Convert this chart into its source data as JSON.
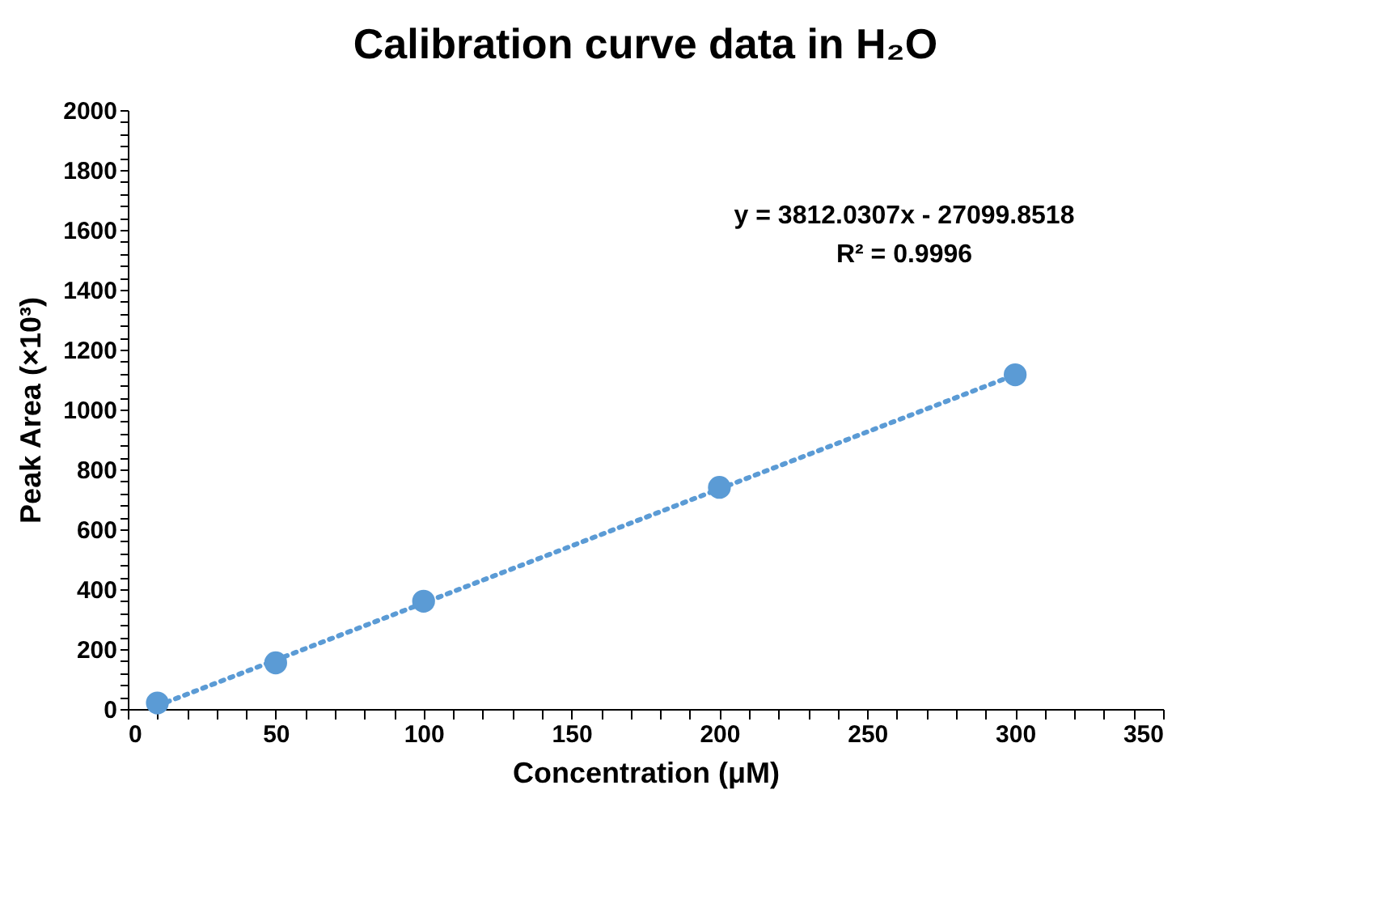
{
  "chart_data": {
    "type": "scatter",
    "title": "Calibration curve data in H₂O",
    "xlabel": "Concentration (μM)",
    "ylabel": "Peak Area (×10³)",
    "x": [
      10,
      50,
      100,
      200,
      300
    ],
    "series": [
      {
        "color": "#5b9bd5",
        "marker": "circle",
        "values": [
          20,
          154,
          360,
          740,
          1116
        ]
      },
      {
        "type": "line",
        "color": "#5b9bd5",
        "line_style": "dotted",
        "x": [
          10,
          300
        ],
        "values": [
          11,
          1116
        ]
      }
    ],
    "annotations": [
      "y = 3812.0307x - 27099.8518",
      "R² = 0.9996"
    ],
    "xlim": [
      0,
      350
    ],
    "ylim": [
      0,
      2000
    ],
    "xticks": [
      0,
      {
        "value": 10,
        "label": null
      },
      {
        "value": 20,
        "label": null
      },
      {
        "value": 30,
        "label": null
      },
      {
        "value": 40,
        "label": null
      },
      50,
      {
        "value": 60,
        "label": null
      },
      {
        "value": 70,
        "label": null
      },
      {
        "value": 80,
        "label": null
      },
      {
        "value": 90,
        "label": null
      },
      100,
      {
        "value": 110,
        "label": null
      },
      {
        "value": 120,
        "label": null
      },
      {
        "value": 130,
        "label": null
      },
      {
        "value": 140,
        "label": null
      },
      150,
      {
        "value": 160,
        "label": null
      },
      {
        "value": 170,
        "label": null
      },
      {
        "value": 180,
        "label": null
      },
      {
        "value": 190,
        "label": null
      },
      200,
      {
        "value": 210,
        "label": null
      },
      {
        "value": 220,
        "label": null
      },
      {
        "value": 230,
        "label": null
      },
      {
        "value": 240,
        "label": null
      },
      250,
      {
        "value": 260,
        "label": null
      },
      {
        "value": 270,
        "label": null
      },
      {
        "value": 280,
        "label": null
      },
      {
        "value": 290,
        "label": null
      },
      300,
      {
        "value": 310,
        "label": null
      },
      {
        "value": 320,
        "label": null
      },
      {
        "value": 330,
        "label": null
      },
      {
        "value": 340,
        "label": null
      },
      350
    ],
    "yticks": [
      0,
      {
        "value": 40,
        "label": null
      },
      {
        "value": 80,
        "label": null
      },
      {
        "value": 120,
        "label": null
      },
      {
        "value": 160,
        "label": null
      },
      200,
      {
        "value": 240,
        "label": null
      },
      {
        "value": 280,
        "label": null
      },
      {
        "value": 320,
        "label": null
      },
      {
        "value": 360,
        "label": null
      },
      400,
      {
        "value": 440,
        "label": null
      },
      {
        "value": 480,
        "label": null
      },
      {
        "value": 520,
        "label": null
      },
      {
        "value": 560,
        "label": null
      },
      600,
      {
        "value": 640,
        "label": null
      },
      {
        "value": 680,
        "label": null
      },
      {
        "value": 720,
        "label": null
      },
      {
        "value": 760,
        "label": null
      },
      800,
      {
        "value": 840,
        "label": null
      },
      {
        "value": 880,
        "label": null
      },
      {
        "value": 920,
        "label": null
      },
      {
        "value": 960,
        "label": null
      },
      1000,
      {
        "value": 1040,
        "label": null
      },
      {
        "value": 1080,
        "label": null
      },
      {
        "value": 1120,
        "label": null
      },
      {
        "value": 1160,
        "label": null
      },
      1200,
      {
        "value": 1240,
        "label": null
      },
      {
        "value": 1280,
        "label": null
      },
      {
        "value": 1320,
        "label": null
      },
      {
        "value": 1360,
        "label": null
      },
      1400,
      {
        "value": 1440,
        "label": null
      },
      {
        "value": 1480,
        "label": null
      },
      {
        "value": 1520,
        "label": null
      },
      {
        "value": 1560,
        "label": null
      },
      1600,
      {
        "value": 1640,
        "label": null
      },
      {
        "value": 1680,
        "label": null
      },
      {
        "value": 1720,
        "label": null
      },
      {
        "value": 1760,
        "label": null
      },
      1800,
      {
        "value": 1840,
        "label": null
      },
      {
        "value": 1880,
        "label": null
      },
      {
        "value": 1920,
        "label": null
      },
      {
        "value": 1960,
        "label": null
      },
      2000
    ],
    "grid": false
  }
}
